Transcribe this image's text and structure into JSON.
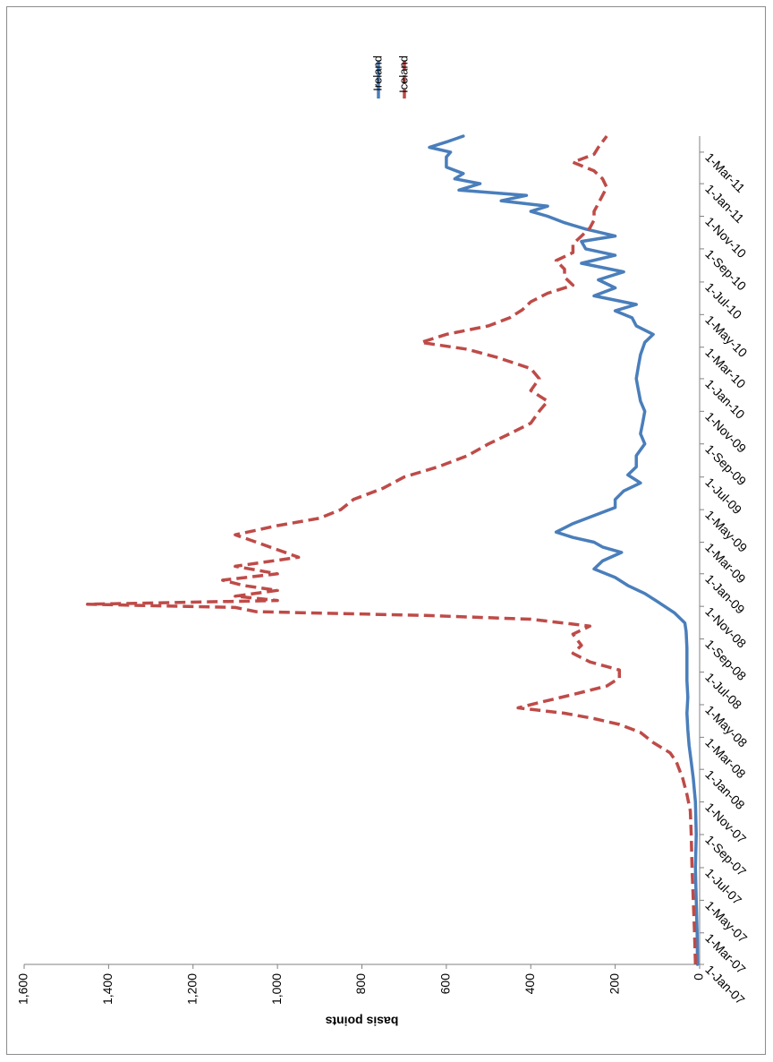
{
  "chart_data": {
    "type": "line",
    "orientation": "rotated 90 degrees clockwise",
    "title": "",
    "xlabel": "",
    "ylabel": "basis points",
    "ylim": [
      0,
      1600
    ],
    "y_ticks": [
      0,
      200,
      400,
      600,
      800,
      1000,
      1200,
      1400,
      1600
    ],
    "y_tick_labels": [
      "0",
      "200",
      "400",
      "600",
      "800",
      "1,000",
      "1,200",
      "1,400",
      "1,600"
    ],
    "x_range": [
      "2007-01-01",
      "2011-03-31"
    ],
    "x_tick_labels": [
      "1-Jan-07",
      "1-Mar-07",
      "1-May-07",
      "1-Jul-07",
      "1-Sep-07",
      "1-Nov-07",
      "1-Jan-08",
      "1-Mar-08",
      "1-May-08",
      "1-Jul-08",
      "1-Sep-08",
      "1-Nov-08",
      "1-Jan-09",
      "1-Mar-09",
      "1-May-09",
      "1-Jul-09",
      "1-Sep-09",
      "1-Nov-09",
      "1-Jan-10",
      "1-Mar-10",
      "1-May-10",
      "1-Jul-10",
      "1-Sep-10",
      "1-Nov-10",
      "1-Jan-11",
      "1-Mar-11"
    ],
    "x_tick_dates": [
      "2007-01-01",
      "2007-03-01",
      "2007-05-01",
      "2007-07-01",
      "2007-09-01",
      "2007-11-01",
      "2008-01-01",
      "2008-03-01",
      "2008-05-01",
      "2008-07-01",
      "2008-09-01",
      "2008-11-01",
      "2009-01-01",
      "2009-03-01",
      "2009-05-01",
      "2009-07-01",
      "2009-09-01",
      "2009-11-01",
      "2010-01-01",
      "2010-03-01",
      "2010-05-01",
      "2010-07-01",
      "2010-09-01",
      "2010-11-01",
      "2011-01-01",
      "2011-03-01"
    ],
    "legend_position": "top",
    "grid": false,
    "series": [
      {
        "name": "Ireland",
        "color": "#4a7ebb",
        "style": "solid",
        "x": [
          "2007-01-01",
          "2007-03-01",
          "2007-05-01",
          "2007-07-01",
          "2007-09-01",
          "2007-11-01",
          "2007-12-15",
          "2008-01-15",
          "2008-02-15",
          "2008-03-15",
          "2008-04-15",
          "2008-05-15",
          "2008-06-15",
          "2008-07-15",
          "2008-08-15",
          "2008-09-15",
          "2008-10-01",
          "2008-10-20",
          "2008-11-10",
          "2008-11-25",
          "2008-12-10",
          "2008-12-25",
          "2009-01-10",
          "2009-01-25",
          "2009-02-10",
          "2009-02-20",
          "2009-03-01",
          "2009-03-10",
          "2009-03-20",
          "2009-04-05",
          "2009-04-20",
          "2009-05-05",
          "2009-05-20",
          "2009-06-05",
          "2009-06-20",
          "2009-07-05",
          "2009-07-20",
          "2009-08-10",
          "2009-09-01",
          "2009-09-20",
          "2009-10-10",
          "2009-11-01",
          "2009-11-20",
          "2009-12-10",
          "2010-01-01",
          "2010-01-25",
          "2010-02-15",
          "2010-03-10",
          "2010-03-25",
          "2010-04-10",
          "2010-04-25",
          "2010-05-08",
          "2010-05-20",
          "2010-06-05",
          "2010-06-20",
          "2010-07-05",
          "2010-07-20",
          "2010-08-05",
          "2010-08-20",
          "2010-09-01",
          "2010-09-15",
          "2010-09-25",
          "2010-10-08",
          "2010-10-20",
          "2010-11-01",
          "2010-11-10",
          "2010-11-20",
          "2010-11-30",
          "2010-12-10",
          "2010-12-20",
          "2011-01-01",
          "2011-01-10",
          "2011-01-20",
          "2011-02-01",
          "2011-02-10",
          "2011-02-20",
          "2011-03-01",
          "2011-03-10",
          "2011-03-20",
          "2011-03-31"
        ],
        "y": [
          5,
          6,
          8,
          10,
          8,
          10,
          15,
          20,
          25,
          28,
          30,
          28,
          30,
          30,
          30,
          32,
          35,
          60,
          100,
          130,
          170,
          200,
          250,
          230,
          185,
          230,
          250,
          300,
          340,
          300,
          250,
          200,
          200,
          180,
          140,
          170,
          150,
          150,
          130,
          140,
          135,
          130,
          140,
          145,
          150,
          145,
          140,
          130,
          110,
          150,
          160,
          200,
          150,
          250,
          200,
          240,
          180,
          280,
          200,
          270,
          280,
          200,
          270,
          320,
          360,
          400,
          360,
          470,
          410,
          570,
          520,
          580,
          560,
          600,
          600,
          600,
          590,
          640,
          600,
          560
        ]
      },
      {
        "name": "Iceland",
        "color": "#be4b48",
        "style": "dashed",
        "x": [
          "2007-01-01",
          "2007-03-01",
          "2007-05-01",
          "2007-07-01",
          "2007-09-01",
          "2007-10-15",
          "2007-11-15",
          "2007-12-15",
          "2008-01-15",
          "2008-02-01",
          "2008-02-20",
          "2008-03-10",
          "2008-03-25",
          "2008-04-05",
          "2008-04-15",
          "2008-04-25",
          "2008-05-05",
          "2008-05-20",
          "2008-06-05",
          "2008-06-20",
          "2008-07-05",
          "2008-07-20",
          "2008-08-05",
          "2008-08-20",
          "2008-09-10",
          "2008-09-25",
          "2008-10-08",
          "2008-10-15",
          "2008-10-22",
          "2008-10-30",
          "2008-11-05",
          "2008-11-12",
          "2008-11-20",
          "2008-12-01",
          "2008-12-10",
          "2008-12-20",
          "2009-01-01",
          "2009-01-15",
          "2009-02-01",
          "2009-02-15",
          "2009-03-01",
          "2009-03-15",
          "2009-04-01",
          "2009-04-15",
          "2009-05-01",
          "2009-05-20",
          "2009-06-10",
          "2009-07-01",
          "2009-07-20",
          "2009-08-10",
          "2009-09-01",
          "2009-09-20",
          "2009-10-10",
          "2009-11-01",
          "2009-11-20",
          "2009-12-10",
          "2010-01-01",
          "2010-01-20",
          "2010-02-10",
          "2010-02-25",
          "2010-03-10",
          "2010-03-25",
          "2010-04-10",
          "2010-04-25",
          "2010-05-10",
          "2010-05-25",
          "2010-06-10",
          "2010-06-25",
          "2010-07-10",
          "2010-07-25",
          "2010-08-10",
          "2010-08-25",
          "2010-09-10",
          "2010-09-25",
          "2010-10-10",
          "2010-10-25",
          "2010-11-10",
          "2010-11-25",
          "2010-12-10",
          "2010-12-25",
          "2011-01-10",
          "2011-01-25",
          "2011-02-10",
          "2011-02-25",
          "2011-03-10",
          "2011-03-31"
        ],
        "y": [
          10,
          12,
          15,
          18,
          20,
          22,
          30,
          40,
          55,
          70,
          110,
          140,
          190,
          250,
          320,
          430,
          380,
          300,
          220,
          190,
          190,
          260,
          300,
          280,
          300,
          260,
          400,
          650,
          1050,
          1100,
          1450,
          1000,
          1100,
          1000,
          1080,
          1130,
          1000,
          1100,
          950,
          1000,
          1050,
          1100,
          1000,
          900,
          850,
          820,
          750,
          700,
          620,
          550,
          500,
          450,
          400,
          380,
          360,
          400,
          380,
          400,
          480,
          550,
          660,
          600,
          500,
          450,
          420,
          400,
          360,
          300,
          320,
          320,
          340,
          300,
          300,
          280,
          260,
          250,
          250,
          240,
          230,
          220,
          230,
          250,
          300,
          250,
          240,
          220
        ]
      }
    ]
  }
}
